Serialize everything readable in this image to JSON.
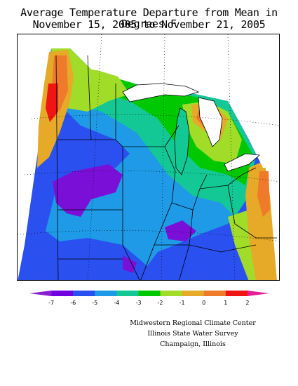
{
  "header": {
    "title_line1": "Average Temperature Departure from Mean in Degrees F",
    "title_line2": "November 15, 2005 to November 21, 2005"
  },
  "legend": {
    "colors": [
      "#8a1ed2",
      "#7000e0",
      "#2850f0",
      "#1e9ae6",
      "#14c896",
      "#00c800",
      "#a0dc28",
      "#e6aa28",
      "#ee7a2a",
      "#f01414",
      "#e61e96"
    ],
    "ticks": [
      "-7",
      "-6",
      "-5",
      "-4",
      "-3",
      "-2",
      "-1",
      "0",
      "1",
      "2"
    ]
  },
  "map": {
    "region": "Midwest United States",
    "colors": {
      "purple": "#7a10d8",
      "blue": "#2a50f0",
      "cyan": "#1e9ae6",
      "teal": "#14c896",
      "green": "#00c800",
      "lightgreen": "#a0dc28",
      "orange": "#e6aa28",
      "darkorange": "#ee7a2a",
      "red": "#f01414"
    }
  },
  "credits": {
    "line1": "Midwestern Regional Climate Center",
    "line2": "Illinois State Water Survey",
    "line3": "Champaign, Illinois"
  }
}
